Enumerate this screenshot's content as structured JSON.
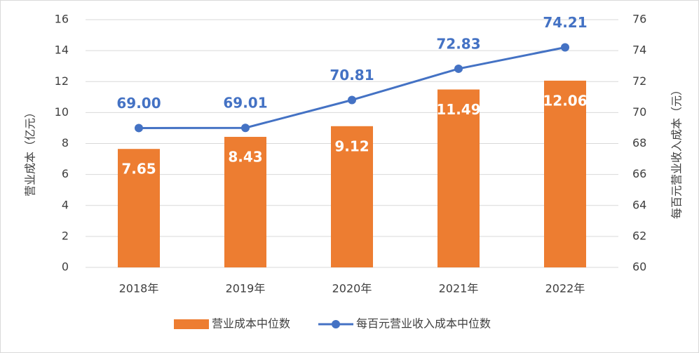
{
  "chart_data": {
    "type": "combo",
    "categories": [
      "2018年",
      "2019年",
      "2020年",
      "2021年",
      "2022年"
    ],
    "series": [
      {
        "name": "营业成本中位数",
        "type": "bar",
        "color": "#ed7d31",
        "values": [
          7.65,
          8.43,
          9.12,
          11.49,
          12.06
        ]
      },
      {
        "name": "每百元营业收入成本中位数",
        "type": "line",
        "axis": "y2",
        "color": "#4472c4",
        "values": [
          69.0,
          69.01,
          70.81,
          72.83,
          74.21
        ],
        "value_labels": [
          "69.00",
          "69.01",
          "70.81",
          "72.83",
          "74.21"
        ]
      }
    ],
    "y_label": "营业成本（亿元）",
    "y2_label": "每百元营业收入成本（元）",
    "ylim": [
      0,
      16
    ],
    "yticks": [
      0,
      2,
      4,
      6,
      8,
      10,
      12,
      14,
      16
    ],
    "y2lim": [
      60,
      76
    ],
    "y2ticks": [
      60,
      62,
      64,
      66,
      68,
      70,
      72,
      74,
      76
    ],
    "grid": true,
    "legend": "bottom"
  }
}
